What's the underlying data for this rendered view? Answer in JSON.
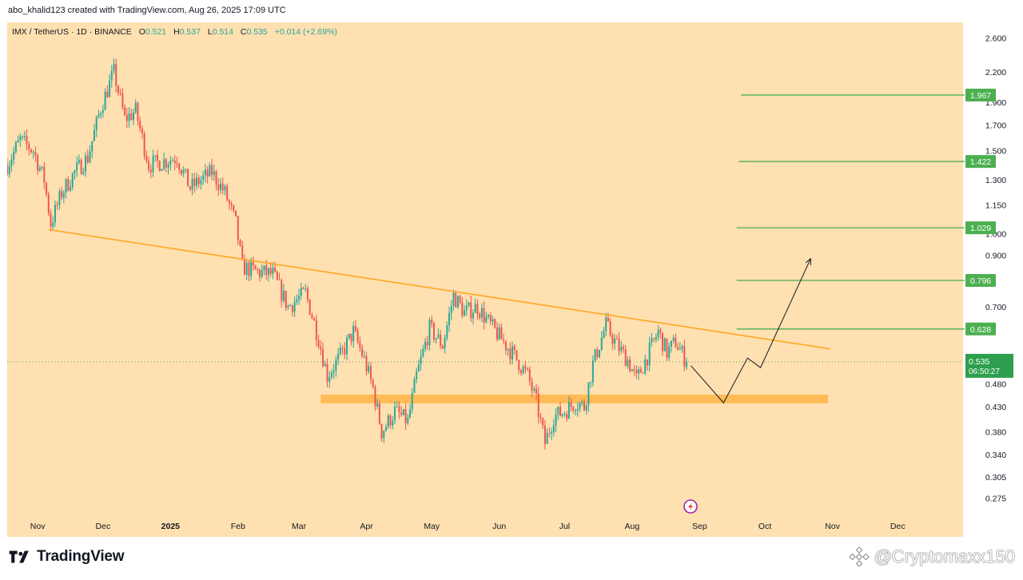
{
  "header": {
    "credit": "abo_khalid123 created with TradingView.com, Aug 26, 2025 17:09 UTC"
  },
  "legend": {
    "symbol": "IMX / TetherUS · 1D · BINANCE",
    "open_label": "O",
    "open": "0.521",
    "high_label": "H",
    "high": "0.537",
    "low_label": "L",
    "low": "0.514",
    "close_label": "C",
    "close": "0.535",
    "change": "+0.014 (+2.69%)"
  },
  "colors": {
    "background": "#ffe0b0",
    "up": "#26a69a",
    "down": "#ef5350",
    "trendline": "#ffa726",
    "support_zone": "#ffb74d",
    "target": "#4caf50",
    "price_label": "#2e9f4e"
  },
  "chart_data": {
    "type": "candlestick",
    "symbol": "IMX / TetherUS",
    "timeframe": "1D",
    "exchange": "BINANCE",
    "y_scale": "log",
    "ylim": [
      0.26,
      2.75
    ],
    "x_range": [
      "2024-10-18",
      "2025-12-31"
    ],
    "x_tick_labels": [
      {
        "label": "Nov",
        "date": "2024-11-01"
      },
      {
        "label": "Dec",
        "date": "2024-12-01"
      },
      {
        "label": "2025",
        "date": "2025-01-01"
      },
      {
        "label": "Feb",
        "date": "2025-02-01"
      },
      {
        "label": "Mar",
        "date": "2025-03-01"
      },
      {
        "label": "Apr",
        "date": "2025-04-01"
      },
      {
        "label": "May",
        "date": "2025-05-01"
      },
      {
        "label": "Jun",
        "date": "2025-06-01"
      },
      {
        "label": "Jul",
        "date": "2025-07-01"
      },
      {
        "label": "Aug",
        "date": "2025-08-01"
      },
      {
        "label": "Sep",
        "date": "2025-09-01"
      },
      {
        "label": "Oct",
        "date": "2025-10-01"
      },
      {
        "label": "Nov",
        "date": "2025-11-01"
      },
      {
        "label": "Dec",
        "date": "2025-12-01"
      }
    ],
    "y_tick_labels": [
      "2.600",
      "2.200",
      "1.900",
      "1.700",
      "1.500",
      "1.300",
      "1.150",
      "1.000",
      "0.900",
      "0.700",
      "0.480",
      "0.430",
      "0.380",
      "0.340",
      "0.305",
      "0.275"
    ],
    "close_path": [
      {
        "date": "2024-10-18",
        "close": 1.4
      },
      {
        "date": "2024-10-24",
        "close": 1.58
      },
      {
        "date": "2024-10-30",
        "close": 1.5
      },
      {
        "date": "2024-11-04",
        "close": 1.3
      },
      {
        "date": "2024-11-07",
        "close": 1.05
      },
      {
        "date": "2024-11-12",
        "close": 1.22
      },
      {
        "date": "2024-11-18",
        "close": 1.35
      },
      {
        "date": "2024-11-24",
        "close": 1.45
      },
      {
        "date": "2024-11-30",
        "close": 1.85
      },
      {
        "date": "2024-12-06",
        "close": 2.2
      },
      {
        "date": "2024-12-11",
        "close": 1.75
      },
      {
        "date": "2024-12-16",
        "close": 1.82
      },
      {
        "date": "2024-12-22",
        "close": 1.4
      },
      {
        "date": "2024-12-28",
        "close": 1.42
      },
      {
        "date": "2025-01-04",
        "close": 1.45
      },
      {
        "date": "2025-01-10",
        "close": 1.25
      },
      {
        "date": "2025-01-15",
        "close": 1.3
      },
      {
        "date": "2025-01-20",
        "close": 1.35
      },
      {
        "date": "2025-01-26",
        "close": 1.22
      },
      {
        "date": "2025-01-31",
        "close": 1.05
      },
      {
        "date": "2025-02-03",
        "close": 0.85
      },
      {
        "date": "2025-02-10",
        "close": 0.83
      },
      {
        "date": "2025-02-17",
        "close": 0.82
      },
      {
        "date": "2025-02-24",
        "close": 0.7
      },
      {
        "date": "2025-03-04",
        "close": 0.75
      },
      {
        "date": "2025-03-10",
        "close": 0.6
      },
      {
        "date": "2025-03-14",
        "close": 0.5
      },
      {
        "date": "2025-03-20",
        "close": 0.55
      },
      {
        "date": "2025-03-26",
        "close": 0.62
      },
      {
        "date": "2025-03-31",
        "close": 0.54
      },
      {
        "date": "2025-04-04",
        "close": 0.47
      },
      {
        "date": "2025-04-08",
        "close": 0.38
      },
      {
        "date": "2025-04-14",
        "close": 0.42
      },
      {
        "date": "2025-04-20",
        "close": 0.4
      },
      {
        "date": "2025-04-24",
        "close": 0.5
      },
      {
        "date": "2025-04-30",
        "close": 0.63
      },
      {
        "date": "2025-05-06",
        "close": 0.58
      },
      {
        "date": "2025-05-11",
        "close": 0.74
      },
      {
        "date": "2025-05-16",
        "close": 0.68
      },
      {
        "date": "2025-05-22",
        "close": 0.7
      },
      {
        "date": "2025-05-28",
        "close": 0.64
      },
      {
        "date": "2025-06-03",
        "close": 0.59
      },
      {
        "date": "2025-06-08",
        "close": 0.55
      },
      {
        "date": "2025-06-14",
        "close": 0.5
      },
      {
        "date": "2025-06-18",
        "close": 0.44
      },
      {
        "date": "2025-06-22",
        "close": 0.36
      },
      {
        "date": "2025-06-26",
        "close": 0.41
      },
      {
        "date": "2025-07-01",
        "close": 0.42
      },
      {
        "date": "2025-07-06",
        "close": 0.44
      },
      {
        "date": "2025-07-10",
        "close": 0.43
      },
      {
        "date": "2025-07-14",
        "close": 0.53
      },
      {
        "date": "2025-07-20",
        "close": 0.64
      },
      {
        "date": "2025-07-25",
        "close": 0.58
      },
      {
        "date": "2025-07-30",
        "close": 0.54
      },
      {
        "date": "2025-08-03",
        "close": 0.49
      },
      {
        "date": "2025-08-08",
        "close": 0.55
      },
      {
        "date": "2025-08-13",
        "close": 0.62
      },
      {
        "date": "2025-08-17",
        "close": 0.56
      },
      {
        "date": "2025-08-21",
        "close": 0.59
      },
      {
        "date": "2025-08-26",
        "close": 0.535
      }
    ],
    "last_price": {
      "value": 0.535,
      "label": "0.535",
      "countdown": "06:50:27"
    },
    "trendline": {
      "start": {
        "date": "2024-11-06",
        "price": 1.02
      },
      "end": {
        "date": "2025-10-31",
        "price": 0.57
      }
    },
    "support_zone": {
      "start_date": "2025-03-11",
      "end_date": "2025-10-30",
      "low": 0.437,
      "high": 0.456
    },
    "target_levels": [
      {
        "value": 1.967,
        "label": "1.967",
        "start_date": "2025-09-20"
      },
      {
        "value": 1.422,
        "label": "1.422",
        "start_date": "2025-09-19"
      },
      {
        "value": 1.029,
        "label": "1.029",
        "start_date": "2025-09-18"
      },
      {
        "value": 0.796,
        "label": "0.796",
        "start_date": "2025-09-18"
      },
      {
        "value": 0.628,
        "label": "0.628",
        "start_date": "2025-09-18"
      }
    ],
    "projection_path": [
      {
        "date": "2025-08-28",
        "price": 0.525
      },
      {
        "date": "2025-09-12",
        "price": 0.438
      },
      {
        "date": "2025-09-23",
        "price": 0.545
      },
      {
        "date": "2025-09-29",
        "price": 0.52
      },
      {
        "date": "2025-10-22",
        "price": 0.885
      }
    ],
    "event_marker": {
      "date": "2025-08-26",
      "icon": "lightning-event-icon"
    }
  },
  "footer": {
    "brand": "TradingView",
    "watermark": "@Cryptomaxx150",
    "brand_icon": "tradingview-logo-icon",
    "watermark_icon": "binance-square-icon"
  }
}
